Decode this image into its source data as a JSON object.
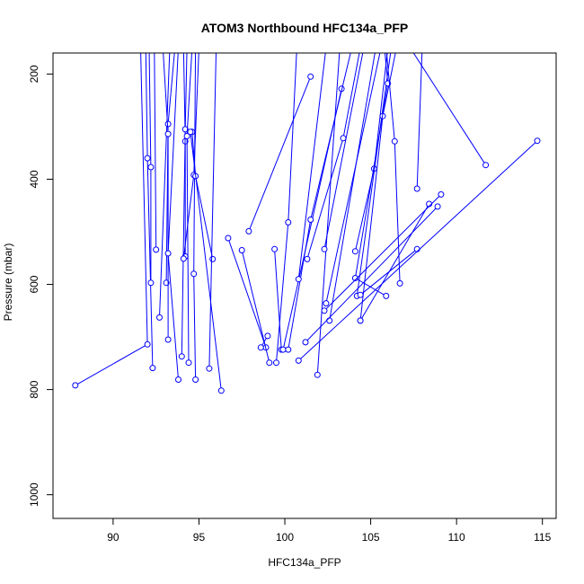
{
  "chart_data": {
    "type": "line",
    "title": "ATOM3 Northbound HFC134a_PFP",
    "xlabel": "HFC134a_PFP",
    "ylabel": "Pressure (mbar)",
    "xlim": [
      86.5,
      115.8
    ],
    "ylim": [
      1045,
      160
    ],
    "y_reversed": true,
    "xticks": [
      90,
      95,
      100,
      105,
      110,
      115
    ],
    "yticks": [
      200,
      400,
      600,
      800,
      1000
    ],
    "grid": false,
    "legend": "none",
    "color": "#0000ff",
    "series": [
      {
        "points": [
          [
            87.8,
            792
          ],
          [
            92.0,
            714
          ],
          [
            91.6,
            150
          ]
        ]
      },
      {
        "points": [
          [
            92.3,
            759
          ],
          [
            92.0,
            360
          ],
          [
            91.9,
            150
          ]
        ]
      },
      {
        "points": [
          [
            92.2,
            597
          ],
          [
            92.2,
            377
          ],
          [
            92.1,
            150
          ]
        ]
      },
      {
        "points": [
          [
            92.5,
            534
          ],
          [
            92.4,
            150
          ]
        ]
      },
      {
        "points": [
          [
            92.7,
            663
          ],
          [
            93.3,
            150
          ]
        ]
      },
      {
        "points": [
          [
            93.1,
            597
          ],
          [
            93.2,
            295
          ],
          [
            93.6,
            150
          ]
        ]
      },
      {
        "points": [
          [
            93.2,
            705
          ],
          [
            93.2,
            314
          ],
          [
            92.9,
            150
          ]
        ]
      },
      {
        "points": [
          [
            93.8,
            781
          ],
          [
            93.2,
            541
          ],
          [
            93.8,
            150
          ]
        ]
      },
      {
        "points": [
          [
            94.2,
            547
          ],
          [
            94.2,
            328
          ],
          [
            94.1,
            150
          ]
        ]
      },
      {
        "points": [
          [
            94.0,
            737
          ],
          [
            94.2,
            305
          ],
          [
            94.3,
            150
          ]
        ]
      },
      {
        "points": [
          [
            94.4,
            749
          ],
          [
            94.3,
            318
          ],
          [
            94.6,
            150
          ]
        ]
      },
      {
        "points": [
          [
            94.8,
            781
          ],
          [
            94.7,
            580
          ],
          [
            94.8,
            150
          ]
        ]
      },
      {
        "points": [
          [
            94.1,
            551
          ],
          [
            94.7,
            392
          ],
          [
            95.0,
            150
          ]
        ]
      },
      {
        "points": [
          [
            95.8,
            552
          ],
          [
            94.8,
            394
          ],
          [
            94.6,
            310
          ]
        ]
      },
      {
        "points": [
          [
            95.6,
            760
          ],
          [
            96.0,
            150
          ]
        ]
      },
      {
        "points": [
          [
            96.3,
            802
          ],
          [
            94.5,
            310
          ]
        ]
      },
      {
        "points": [
          [
            96.7,
            512
          ],
          [
            98.9,
            720
          ]
        ]
      },
      {
        "points": [
          [
            97.5,
            535
          ],
          [
            99.1,
            749
          ]
        ]
      },
      {
        "points": [
          [
            97.9,
            499
          ],
          [
            101.5,
            205
          ]
        ]
      },
      {
        "points": [
          [
            99.0,
            698
          ],
          [
            98.6,
            720
          ]
        ]
      },
      {
        "points": [
          [
            99.4,
            533
          ],
          [
            99.8,
            724
          ]
        ]
      },
      {
        "points": [
          [
            99.5,
            749
          ],
          [
            100.2,
            482
          ],
          [
            100.7,
            150
          ]
        ]
      },
      {
        "points": [
          [
            99.9,
            724
          ],
          [
            103.3,
            228
          ]
        ]
      },
      {
        "points": [
          [
            100.2,
            724
          ],
          [
            101.5,
            477
          ],
          [
            103.9,
            150
          ]
        ]
      },
      {
        "points": [
          [
            100.8,
            590
          ],
          [
            102.4,
            150
          ]
        ]
      },
      {
        "points": [
          [
            101.3,
            552
          ],
          [
            103.4,
            322
          ],
          [
            104.4,
            150
          ]
        ]
      },
      {
        "points": [
          [
            101.9,
            772
          ],
          [
            103.2,
            150
          ]
        ]
      },
      {
        "points": [
          [
            102.3,
            533
          ],
          [
            104.6,
            150
          ]
        ]
      },
      {
        "points": [
          [
            102.6,
            669
          ],
          [
            105.3,
            150
          ]
        ]
      },
      {
        "points": [
          [
            102.4,
            636
          ],
          [
            105.6,
            150
          ]
        ]
      },
      {
        "points": [
          [
            104.1,
            537
          ],
          [
            105.2,
            380
          ],
          [
            106.0,
            150
          ]
        ]
      },
      {
        "points": [
          [
            104.2,
            622
          ],
          [
            106.2,
            150
          ]
        ]
      },
      {
        "points": [
          [
            104.4,
            669
          ],
          [
            105.7,
            280
          ],
          [
            106.5,
            150
          ]
        ]
      },
      {
        "points": [
          [
            105.9,
            622
          ],
          [
            104.1,
            588
          ],
          [
            106.0,
            218
          ],
          [
            105.8,
            150
          ]
        ]
      },
      {
        "points": [
          [
            106.7,
            598
          ],
          [
            106.4,
            328
          ],
          [
            105.9,
            150
          ]
        ]
      },
      {
        "points": [
          [
            107.7,
            533
          ],
          [
            104.4,
            620
          ]
        ]
      },
      {
        "points": [
          [
            107.7,
            418
          ],
          [
            108.0,
            150
          ]
        ]
      },
      {
        "points": [
          [
            108.4,
            447
          ],
          [
            104.4,
            669
          ]
        ]
      },
      {
        "points": [
          [
            108.9,
            452
          ],
          [
            101.2,
            710
          ]
        ]
      },
      {
        "points": [
          [
            109.1,
            429
          ],
          [
            102.3,
            650
          ]
        ]
      },
      {
        "points": [
          [
            111.7,
            373
          ],
          [
            107.3,
            150
          ]
        ]
      },
      {
        "points": [
          [
            114.7,
            327
          ],
          [
            100.8,
            745
          ]
        ]
      }
    ]
  }
}
